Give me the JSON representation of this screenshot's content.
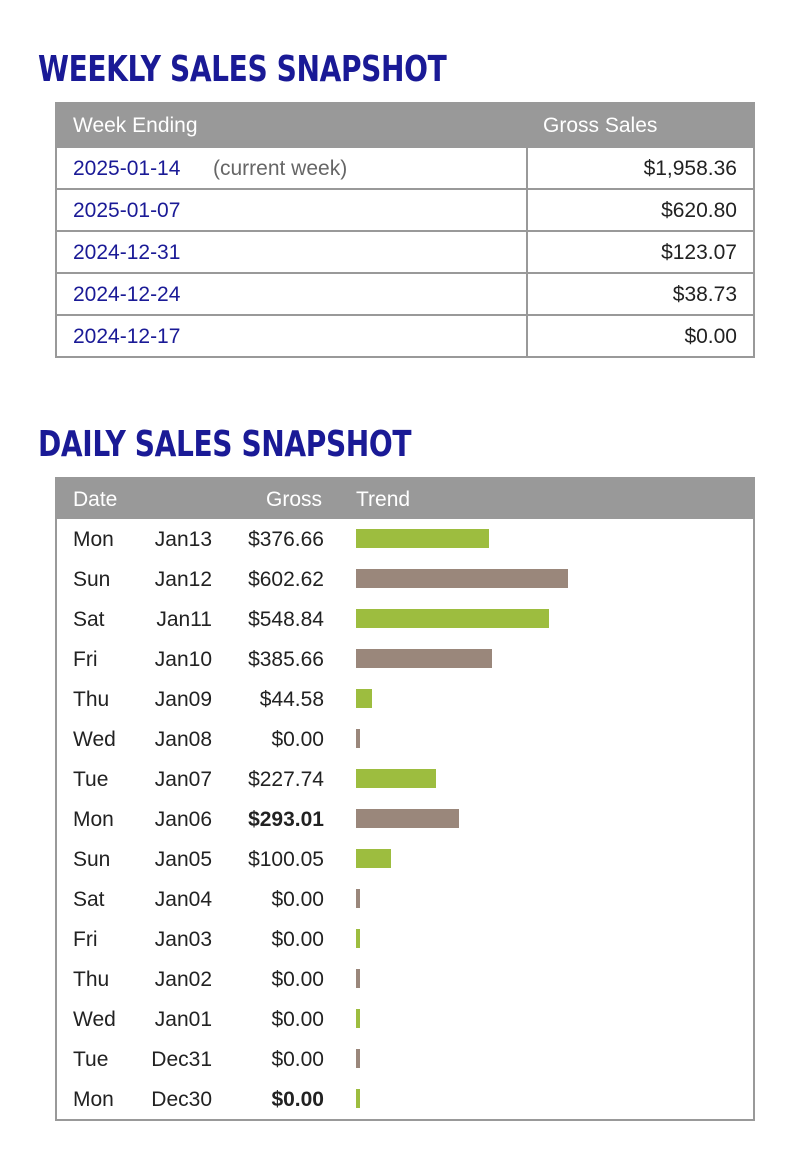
{
  "weekly": {
    "title": "WEEKLY SALES SNAPSHOT",
    "headers": {
      "week_ending": "Week Ending",
      "gross_sales": "Gross Sales"
    },
    "rows": [
      {
        "date": "2025-01-14",
        "note": "(current week)",
        "amount": "$1,958.36"
      },
      {
        "date": "2025-01-07",
        "note": "",
        "amount": "$620.80"
      },
      {
        "date": "2024-12-31",
        "note": "",
        "amount": "$123.07"
      },
      {
        "date": "2024-12-24",
        "note": "",
        "amount": "$38.73"
      },
      {
        "date": "2024-12-17",
        "note": "",
        "amount": "$0.00"
      }
    ]
  },
  "daily": {
    "title": "DAILY SALES SNAPSHOT",
    "headers": {
      "date": "Date",
      "gross": "Gross",
      "trend": "Trend"
    },
    "colors": {
      "green": "#9dbd3f",
      "taupe": "#9a877b"
    },
    "rows": [
      {
        "dow": "Mon",
        "md": "Jan13",
        "gross": "$376.66",
        "value": 376.66,
        "bold": false
      },
      {
        "dow": "Sun",
        "md": "Jan12",
        "gross": "$602.62",
        "value": 602.62,
        "bold": false
      },
      {
        "dow": "Sat",
        "md": "Jan11",
        "gross": "$548.84",
        "value": 548.84,
        "bold": false
      },
      {
        "dow": "Fri",
        "md": "Jan10",
        "gross": "$385.66",
        "value": 385.66,
        "bold": false
      },
      {
        "dow": "Thu",
        "md": "Jan09",
        "gross": "$44.58",
        "value": 44.58,
        "bold": false
      },
      {
        "dow": "Wed",
        "md": "Jan08",
        "gross": "$0.00",
        "value": 0,
        "bold": false
      },
      {
        "dow": "Tue",
        "md": "Jan07",
        "gross": "$227.74",
        "value": 227.74,
        "bold": false
      },
      {
        "dow": "Mon",
        "md": "Jan06",
        "gross": "$293.01",
        "value": 293.01,
        "bold": true
      },
      {
        "dow": "Sun",
        "md": "Jan05",
        "gross": "$100.05",
        "value": 100.05,
        "bold": false
      },
      {
        "dow": "Sat",
        "md": "Jan04",
        "gross": "$0.00",
        "value": 0,
        "bold": false
      },
      {
        "dow": "Fri",
        "md": "Jan03",
        "gross": "$0.00",
        "value": 0,
        "bold": false
      },
      {
        "dow": "Thu",
        "md": "Jan02",
        "gross": "$0.00",
        "value": 0,
        "bold": false
      },
      {
        "dow": "Wed",
        "md": "Jan01",
        "gross": "$0.00",
        "value": 0,
        "bold": false
      },
      {
        "dow": "Tue",
        "md": "Dec31",
        "gross": "$0.00",
        "value": 0,
        "bold": false
      },
      {
        "dow": "Mon",
        "md": "Dec30",
        "gross": "$0.00",
        "value": 0,
        "bold": true
      }
    ]
  }
}
